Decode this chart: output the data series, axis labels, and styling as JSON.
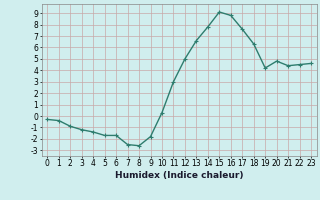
{
  "x": [
    0,
    1,
    2,
    3,
    4,
    5,
    6,
    7,
    8,
    9,
    10,
    11,
    12,
    13,
    14,
    15,
    16,
    17,
    18,
    19,
    20,
    21,
    22,
    23
  ],
  "y": [
    -0.3,
    -0.4,
    -0.9,
    -1.2,
    -1.4,
    -1.7,
    -1.7,
    -2.5,
    -2.6,
    -1.8,
    0.3,
    3.0,
    5.0,
    6.6,
    7.8,
    9.1,
    8.8,
    7.6,
    6.3,
    4.2,
    4.8,
    4.4,
    4.5,
    4.6
  ],
  "line_color": "#2e7d6e",
  "marker": "+",
  "marker_size": 3,
  "xlabel": "Humidex (Indice chaleur)",
  "ylim": [
    -3.5,
    9.8
  ],
  "xlim": [
    -0.5,
    23.5
  ],
  "yticks": [
    -3,
    -2,
    -1,
    0,
    1,
    2,
    3,
    4,
    5,
    6,
    7,
    8,
    9
  ],
  "xticks": [
    0,
    1,
    2,
    3,
    4,
    5,
    6,
    7,
    8,
    9,
    10,
    11,
    12,
    13,
    14,
    15,
    16,
    17,
    18,
    19,
    20,
    21,
    22,
    23
  ],
  "bg_color": "#d0eeee",
  "grid_color_major": "#c8a8a8",
  "grid_color_minor": "#c8a8a8",
  "line_width": 1.0,
  "tick_fontsize": 5.5,
  "xlabel_fontsize": 6.5
}
